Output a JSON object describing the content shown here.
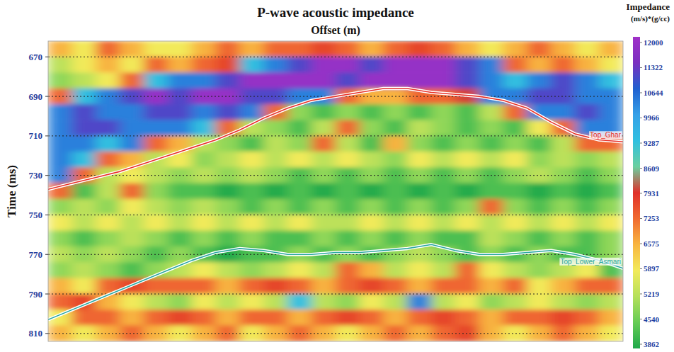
{
  "chart_data": {
    "type": "heatmap",
    "title": "P-wave acoustic impedance",
    "x_label": "Offset (m)",
    "y_label": "Time (ms)",
    "xlim": [
      0,
      24
    ],
    "ylim": [
      662,
      814
    ],
    "yticks": [
      670,
      690,
      710,
      730,
      750,
      770,
      790,
      810
    ],
    "grid": true,
    "tick_labels": "y",
    "x": [
      0,
      1,
      2,
      3,
      4,
      5,
      6,
      7,
      8,
      9,
      10,
      11,
      12,
      13,
      14,
      15,
      16,
      17,
      18,
      19,
      20,
      21,
      22,
      23,
      24
    ],
    "cells": [
      [
        6600,
        5900,
        7300,
        6600,
        5900,
        5900,
        6600,
        7300,
        6600,
        7300,
        7300,
        7700,
        7300,
        6600,
        7300,
        7700,
        7300,
        6600,
        5900,
        6600,
        7300,
        6600,
        5900,
        6600
      ],
      [
        5300,
        5900,
        6600,
        5900,
        7300,
        6600,
        7300,
        7700,
        9300,
        10300,
        11000,
        11800,
        11800,
        11000,
        11800,
        11800,
        11800,
        11000,
        10300,
        7300,
        6600,
        7300,
        6600,
        5900
      ],
      [
        4900,
        5300,
        5900,
        7300,
        9300,
        10300,
        10300,
        11000,
        11800,
        11800,
        11800,
        11800,
        11000,
        11800,
        11800,
        11800,
        11800,
        11000,
        10300,
        9300,
        10300,
        11000,
        10300,
        9300
      ],
      [
        7300,
        9300,
        10300,
        11000,
        11800,
        11000,
        11800,
        11800,
        11000,
        11000,
        10300,
        10300,
        7300,
        6600,
        6600,
        7300,
        7300,
        8000,
        10300,
        10300,
        11000,
        11000,
        10300,
        10300
      ],
      [
        10300,
        11000,
        10300,
        10300,
        11000,
        11000,
        10300,
        11000,
        10300,
        7300,
        4900,
        4300,
        4900,
        4300,
        4900,
        4300,
        4900,
        4300,
        5300,
        7300,
        10300,
        10300,
        11000,
        10300
      ],
      [
        10300,
        11000,
        11000,
        10300,
        10300,
        10300,
        9300,
        7300,
        5300,
        4900,
        4300,
        5300,
        7300,
        4900,
        4300,
        5300,
        4900,
        4300,
        4900,
        4300,
        5900,
        7300,
        10300,
        10300
      ],
      [
        10300,
        10300,
        9300,
        10300,
        7300,
        6600,
        5300,
        4900,
        4300,
        5300,
        4900,
        7300,
        5300,
        4300,
        6600,
        4900,
        4300,
        4900,
        4300,
        4900,
        4300,
        5300,
        7300,
        7300
      ],
      [
        10300,
        9300,
        7300,
        6600,
        5300,
        5900,
        4900,
        5300,
        5900,
        5300,
        5900,
        5300,
        5900,
        5300,
        4900,
        5900,
        5300,
        5900,
        5300,
        5900,
        4900,
        5300,
        4900,
        5300
      ],
      [
        10300,
        7300,
        5300,
        5900,
        5300,
        4900,
        5300,
        4900,
        5300,
        4900,
        4300,
        4900,
        4300,
        4900,
        4300,
        4900,
        4300,
        4900,
        4300,
        4900,
        5300,
        4900,
        4300,
        4900
      ],
      [
        7300,
        4300,
        5300,
        7300,
        4900,
        4300,
        4300,
        3900,
        4300,
        3900,
        4300,
        3900,
        4300,
        3900,
        4300,
        3900,
        4300,
        3900,
        4300,
        4300,
        3900,
        4300,
        3900,
        4300
      ],
      [
        4900,
        5300,
        4900,
        5900,
        5300,
        4900,
        5300,
        4900,
        4300,
        4900,
        4300,
        4900,
        4300,
        4900,
        4300,
        4900,
        4300,
        4900,
        7300,
        4900,
        4300,
        4900,
        4300,
        4900
      ],
      [
        5900,
        5300,
        5900,
        5300,
        5900,
        5300,
        5900,
        5300,
        5900,
        5300,
        5900,
        5300,
        5300,
        5900,
        5300,
        5900,
        5300,
        5900,
        5300,
        5900,
        5300,
        5900,
        5300,
        5900
      ],
      [
        4900,
        4300,
        4900,
        5300,
        4900,
        4300,
        4900,
        4300,
        4900,
        4300,
        4300,
        4900,
        4300,
        4900,
        4300,
        4900,
        4300,
        4300,
        5300,
        4900,
        4300,
        4900,
        4300,
        4900
      ],
      [
        5300,
        4900,
        5300,
        4900,
        4300,
        4900,
        4300,
        3900,
        4300,
        4300,
        4900,
        4300,
        4900,
        4300,
        4900,
        5300,
        4900,
        4300,
        4900,
        4300,
        4900,
        4300,
        4300,
        4900
      ],
      [
        4900,
        5300,
        4900,
        4300,
        4900,
        5300,
        5900,
        5300,
        4900,
        5300,
        5900,
        5300,
        7300,
        6600,
        5300,
        5900,
        5300,
        7300,
        5900,
        5300,
        4900,
        5300,
        5900,
        4300
      ],
      [
        6600,
        5900,
        7300,
        7700,
        7300,
        7300,
        7300,
        6600,
        7300,
        7700,
        7300,
        6600,
        7300,
        7700,
        7300,
        6600,
        7300,
        7300,
        6600,
        7300,
        5900,
        6600,
        7300,
        7300
      ],
      [
        7300,
        7700,
        6600,
        5900,
        5300,
        4900,
        5900,
        5300,
        5900,
        5300,
        9300,
        5300,
        4900,
        5900,
        5300,
        10300,
        5300,
        5900,
        4900,
        5300,
        5900,
        5300,
        4900,
        5300
      ],
      [
        5900,
        7300,
        7300,
        6600,
        7300,
        7700,
        7300,
        6600,
        7300,
        7300,
        6600,
        7300,
        7700,
        7300,
        6600,
        7300,
        7700,
        7300,
        6600,
        7300,
        7300,
        7700,
        7300,
        6600
      ],
      [
        6600,
        5900,
        6600,
        7300,
        6600,
        5900,
        6600,
        7300,
        5900,
        6600,
        7300,
        6600,
        5900,
        6600,
        7300,
        6600,
        7300,
        7700,
        6600,
        5900,
        6600,
        7300,
        6600,
        5900
      ]
    ],
    "colorbar": {
      "title": "Impedance",
      "label": "(m/s)*(g/cc)",
      "range": [
        3862,
        12000
      ],
      "ticks": [
        12000,
        11322,
        10644,
        9966,
        9287,
        8609,
        7931,
        7253,
        6575,
        5897,
        5219,
        4540,
        3862
      ]
    },
    "series": [
      {
        "name": "Top_Ghar",
        "type": "line",
        "color": "#e8322a",
        "values": [
          737,
          734,
          731,
          728,
          724,
          720,
          716,
          712,
          707,
          701,
          696,
          692,
          690,
          688,
          686,
          686,
          688,
          689,
          690,
          692,
          696,
          703,
          709,
          712,
          713
        ]
      },
      {
        "name": "Top_Lower_Asmari",
        "type": "line",
        "color": "#2aa8a0",
        "values": [
          803,
          798,
          793,
          788,
          783,
          778,
          773,
          769,
          767,
          768,
          770,
          770,
          769,
          769,
          768,
          767,
          765,
          768,
          770,
          770,
          769,
          768,
          770,
          773,
          777
        ]
      }
    ]
  }
}
